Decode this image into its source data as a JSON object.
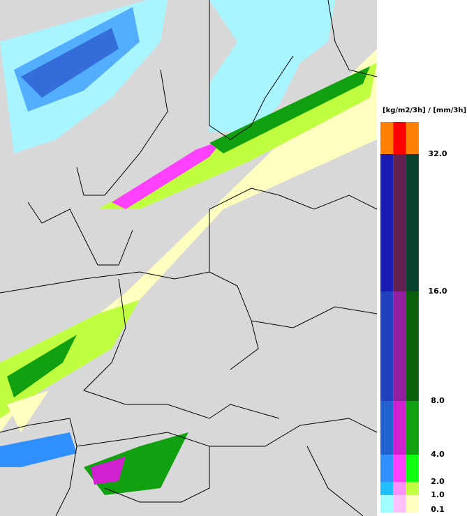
{
  "legend": {
    "title": "[kg/m2/3h] / [mm/3h]",
    "ticks": [
      {
        "value": 32,
        "label": "32.0"
      },
      {
        "value": 16,
        "label": "16.0"
      },
      {
        "value": 8,
        "label": "8.0"
      },
      {
        "value": 4,
        "label": "4.0"
      },
      {
        "value": 2,
        "label": "2.0"
      },
      {
        "value": 1,
        "label": "1.0"
      },
      0.1
    ],
    "bands": [
      [
        "#ff8000",
        "#ff0000",
        "#ff8000"
      ],
      [
        "#1a1ab4",
        "#602050",
        "#0a4030"
      ],
      [
        "#2040c0",
        "#9020a0",
        "#0a600a"
      ],
      [
        "#2060d0",
        "#d020d0",
        "#10a010"
      ],
      [
        "#3090ff",
        "#ff40ff",
        "#10ff10"
      ],
      [
        "#20c0ff",
        "#ff90ff",
        "#c0ff40"
      ],
      [
        "#a0ffff",
        "#ffc0ff",
        "#ffffc0"
      ]
    ]
  }
}
